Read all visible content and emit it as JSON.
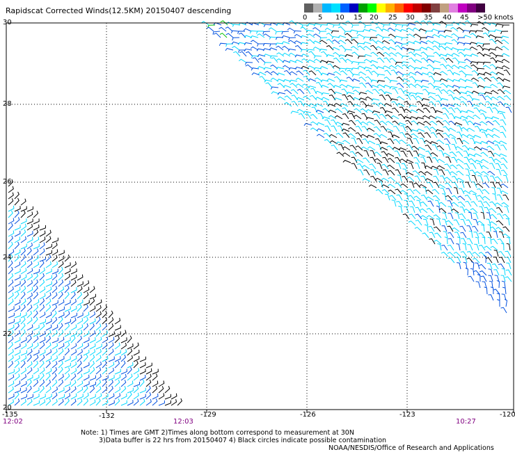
{
  "title": "Rapidscat Corrected Winds(12.5KM) 20150407 descending",
  "legend": {
    "labels": [
      "0",
      "5",
      "10",
      "15",
      "20",
      "25",
      "30",
      "35",
      "40",
      "45",
      ">50 knots"
    ],
    "colors": [
      "#606060",
      "#b0b0b0",
      "#00b8ff",
      "#00e0ff",
      "#0060ff",
      "#0000c0",
      "#00a000",
      "#00ff00",
      "#ffff00",
      "#ffb000",
      "#ff6000",
      "#ff0000",
      "#c00000",
      "#800000",
      "#804040",
      "#c0a080",
      "#e080e0",
      "#c000c0",
      "#800080",
      "#400040"
    ]
  },
  "axes": {
    "lon_ticks": [
      "-135",
      "-132",
      "-129",
      "-126",
      "-123",
      "-120"
    ],
    "lat_ticks": [
      "30",
      "28",
      "26",
      "24",
      "22",
      "20"
    ]
  },
  "times": [
    "12:02",
    "12:03",
    "10:27"
  ],
  "notes": [
    "Note: 1) Times are GMT 2)Times along bottom correspond to measurement at 30N",
    "3)Data buffer is 22 hrs from 20150407 4) Black circles indicate possible contamination",
    "NOAA/NESDIS/Office of Research and Applications"
  ],
  "colors": {
    "black_barb": "#000000",
    "cyan_barb": "#00d8ff",
    "blue_barb": "#0050e0",
    "green_barb": "#00c000",
    "time_label": "#800080"
  }
}
